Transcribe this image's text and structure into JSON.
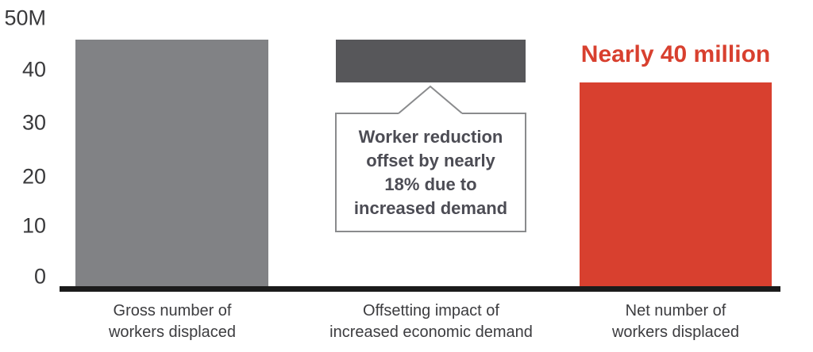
{
  "page": {
    "background": "#ffffff"
  },
  "colors": {
    "bar_gray": "#818285",
    "bar_dark_gray": "#57575A",
    "accent_red": "#D8402F",
    "baseline_black": "#1b1b1b",
    "tick_text": "#3a3a3c",
    "category_text": "#3c3c3f",
    "callout_border": "#8a8b8d",
    "callout_text": "#4c4c54"
  },
  "chart_data": {
    "type": "bar",
    "title": "",
    "xlabel": "",
    "ylabel": "",
    "unit": "millions of workers",
    "ylim": [
      0,
      50
    ],
    "grid": false,
    "legend": "none",
    "yticks": [
      50,
      40,
      30,
      20,
      10,
      0
    ],
    "ytick_labels": [
      "50M",
      "40",
      "30",
      "20",
      "10",
      "0"
    ],
    "categories": [
      "Gross number of workers displaced",
      "Offsetting impact of increased economic demand",
      "Net number of workers displaced"
    ],
    "bars": [
      {
        "category": "Gross number of workers displaced",
        "label_lines": [
          "Gross number of",
          "workers displaced"
        ],
        "value": 46,
        "base": 0,
        "color": "#818285"
      },
      {
        "category": "Offsetting impact of increased economic demand",
        "label_lines": [
          "Offsetting impact of",
          "increased economic demand"
        ],
        "value": 46,
        "base": 38,
        "color": "#57575A"
      },
      {
        "category": "Net number of workers displaced",
        "label_lines": [
          "Net number of",
          "workers displaced"
        ],
        "value": 38,
        "base": 0,
        "color": "#D8402F"
      }
    ],
    "annotations": {
      "net_bar_label": "Nearly 40 million",
      "callout": {
        "text": "Worker reduction offset by nearly 18% due to increased demand",
        "lines": [
          "Worker reduction",
          "offset by nearly",
          "18% due to",
          "increased demand"
        ],
        "points_to": "offsetting-bar"
      }
    }
  }
}
